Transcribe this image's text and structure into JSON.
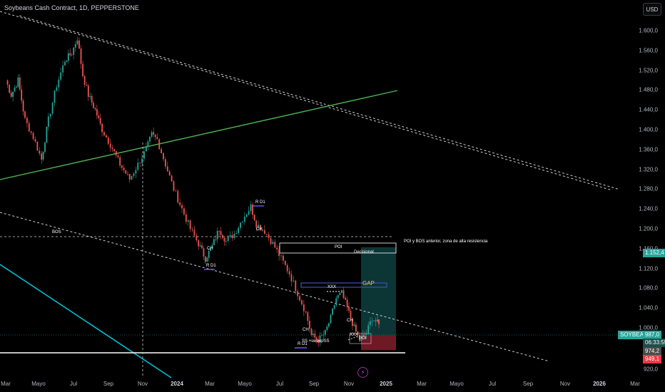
{
  "header": {
    "title": "Soybeans Cash Contract, 1D, PEPPERSTONE",
    "currency_button": "USD"
  },
  "chart_data": {
    "type": "line",
    "subtype": "candlestick",
    "y_ticks": [
      "1.600,0",
      "1.560,0",
      "1.520,0",
      "1.480,0",
      "1.440,0",
      "1.400,0",
      "1.360,0",
      "1.320,0",
      "1.280,0",
      "1.240,0",
      "1.200,0",
      "1.160,0",
      "1.120,0",
      "1.080,0",
      "1.040,0",
      "1.000,0",
      "920,0"
    ],
    "y_tick_values": [
      1600,
      1560,
      1520,
      1480,
      1440,
      1400,
      1360,
      1320,
      1280,
      1240,
      1200,
      1160,
      1120,
      1080,
      1040,
      1000,
      920
    ],
    "x_ticks": [
      {
        "label": "Mar"
      },
      {
        "label": "Mayo"
      },
      {
        "label": "Jul"
      },
      {
        "label": "Sep"
      },
      {
        "label": "Nov"
      },
      {
        "label": "2024",
        "bold": true
      },
      {
        "label": "Mar"
      },
      {
        "label": "Mayo"
      },
      {
        "label": "Jul"
      },
      {
        "label": "Sep"
      },
      {
        "label": "Nov"
      },
      {
        "label": "2025",
        "bold": true
      },
      {
        "label": "Mar"
      },
      {
        "label": "Mayo"
      },
      {
        "label": "Jul"
      },
      {
        "label": "Sep"
      },
      {
        "label": "Nov"
      },
      {
        "label": "2026",
        "bold": true
      },
      {
        "label": "Mar"
      }
    ],
    "price_path": [
      [
        0,
        1500
      ],
      [
        0.04,
        1470
      ],
      [
        0.09,
        1500
      ],
      [
        0.14,
        1420
      ],
      [
        0.2,
        1385
      ],
      [
        0.26,
        1340
      ],
      [
        0.31,
        1420
      ],
      [
        0.37,
        1490
      ],
      [
        0.43,
        1540
      ],
      [
        0.48,
        1555
      ],
      [
        0.52,
        1585
      ],
      [
        0.56,
        1510
      ],
      [
        0.6,
        1470
      ],
      [
        0.65,
        1440
      ],
      [
        0.7,
        1400
      ],
      [
        0.76,
        1370
      ],
      [
        0.83,
        1330
      ],
      [
        0.9,
        1300
      ],
      [
        0.96,
        1330
      ],
      [
        1.02,
        1360
      ],
      [
        1.06,
        1390
      ],
      [
        1.1,
        1380
      ],
      [
        1.16,
        1330
      ],
      [
        1.22,
        1280
      ],
      [
        1.28,
        1240
      ],
      [
        1.34,
        1200
      ],
      [
        1.4,
        1170
      ],
      [
        1.45,
        1140
      ],
      [
        1.5,
        1165
      ],
      [
        1.55,
        1200
      ],
      [
        1.6,
        1175
      ],
      [
        1.66,
        1190
      ],
      [
        1.72,
        1220
      ],
      [
        1.78,
        1245
      ],
      [
        1.82,
        1210
      ],
      [
        1.88,
        1195
      ],
      [
        1.94,
        1170
      ],
      [
        2.0,
        1140
      ],
      [
        2.06,
        1110
      ],
      [
        2.12,
        1070
      ],
      [
        2.18,
        1030
      ],
      [
        2.22,
        985
      ],
      [
        2.27,
        975
      ],
      [
        2.32,
        990
      ],
      [
        2.36,
        1020
      ],
      [
        2.4,
        1060
      ],
      [
        2.44,
        1070
      ],
      [
        2.48,
        1040
      ],
      [
        2.53,
        1000
      ],
      [
        2.57,
        975
      ],
      [
        2.62,
        990
      ],
      [
        2.66,
        1020
      ],
      [
        2.7,
        1010
      ],
      [
        2.72,
        1000
      ]
    ],
    "last_price": 987.0,
    "annotations": {
      "trendline_upper": {
        "from": [
          0.1,
          1630
        ],
        "to": [
          4.45,
          1280
        ]
      },
      "green_trendline": {
        "from": [
          -0.5,
          1300
        ],
        "to": [
          2.75,
          1480
        ]
      },
      "channel_lower": {
        "from": [
          -0.5,
          1205
        ],
        "to": [
          4.0,
          900
        ]
      },
      "blue_line": {
        "from": [
          -0.5,
          1120
        ],
        "to": [
          1.2,
          880
        ]
      },
      "bos_level": 1180,
      "support_level": 955,
      "poi_zone": [
        1152.4,
        1170
      ],
      "gap_zone": [
        1084,
        1090
      ]
    }
  },
  "labels": {
    "bos": "BOS",
    "poi_top": "POI",
    "decisional": "Decisional",
    "poi_note": "POI y BOS anterior, zona de alta resistencia",
    "gap": "GAP",
    "xxx_top": "XXX",
    "xxx_bottom": "XXX",
    "rd1_high": "R D1",
    "rd1_low": "R D1",
    "rd1_bottom": "R D1",
    "ch1": "CH",
    "ch2": "CH",
    "ch3": "CH",
    "ch4": "CH",
    "sweep": "SS +sweepSS",
    "poi_bottom": "POI"
  },
  "price_tags": {
    "target": "1.152,4",
    "symbol": "SOYBEANS",
    "current": "987,0",
    "countdown": "06:33:55",
    "stop_upper": "974,2",
    "stop_lower": "949,1"
  },
  "colors": {
    "background": "#000000",
    "candle_up": "#26a69a",
    "candle_down": "#ef5350",
    "green_line": "#4caf50",
    "blue_line": "#00bcd4",
    "target_zone": "#0d3b3b",
    "stop_zone": "#7a1d2a",
    "target_tag": "#26a69a",
    "stop_tag": "#f23645"
  }
}
